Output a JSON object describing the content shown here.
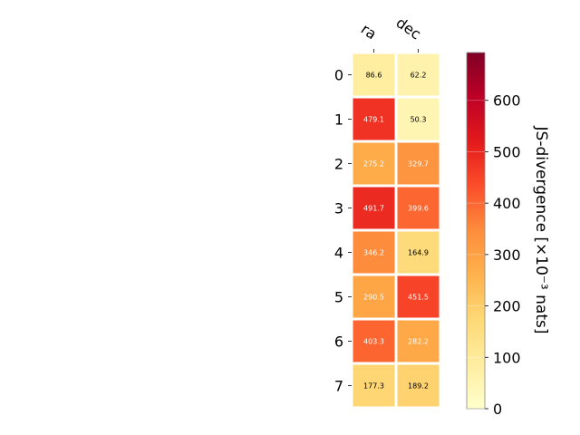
{
  "chart_data": {
    "type": "heatmap",
    "x_categories": [
      "ra",
      "dec"
    ],
    "y_categories": [
      "0",
      "1",
      "2",
      "3",
      "4",
      "5",
      "6",
      "7"
    ],
    "values": [
      [
        86.6,
        62.2
      ],
      [
        479.1,
        50.3
      ],
      [
        275.2,
        329.7
      ],
      [
        491.7,
        399.6
      ],
      [
        346.2,
        164.9
      ],
      [
        290.5,
        451.5
      ],
      [
        403.3,
        282.2
      ],
      [
        177.3,
        189.2
      ]
    ],
    "value_labels": [
      [
        "86.6",
        "62.2"
      ],
      [
        "479.1",
        "50.3"
      ],
      [
        "275.2",
        "329.7"
      ],
      [
        "491.7",
        "399.6"
      ],
      [
        "346.2",
        "164.9"
      ],
      [
        "290.5",
        "451.5"
      ],
      [
        "403.3",
        "282.2"
      ],
      [
        "177.3",
        "189.2"
      ]
    ],
    "colorbar": {
      "label": "JS-divergence [×10⁻³ nats]",
      "range": [
        0,
        693
      ],
      "ticks": [
        0,
        100,
        200,
        300,
        400,
        500,
        600
      ],
      "colormap": "YlOrRd"
    },
    "grid": false
  }
}
